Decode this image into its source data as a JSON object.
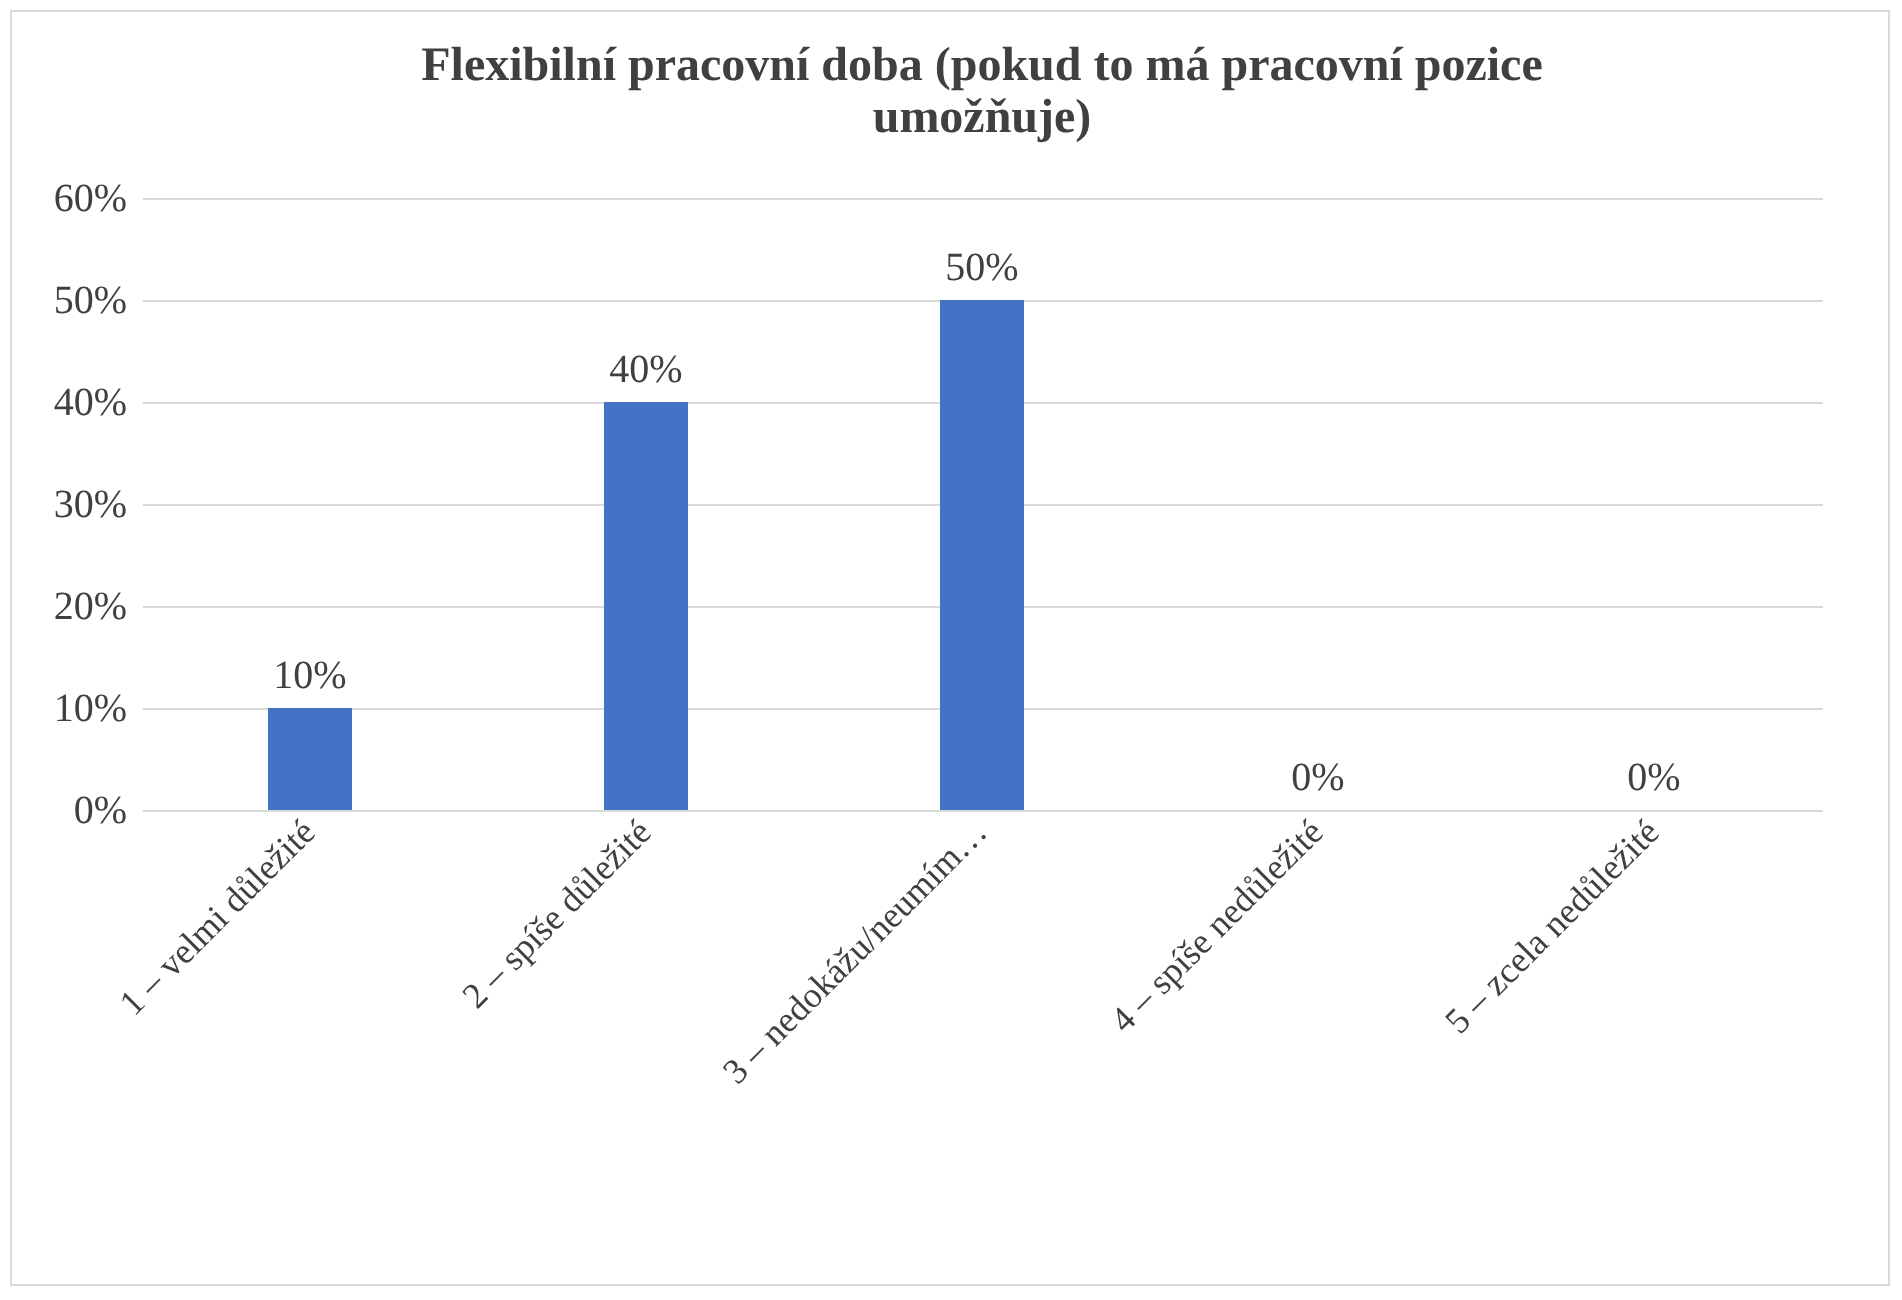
{
  "chart_data": {
    "type": "bar",
    "title": "Flexibilní pracovní doba (pokud to má pracovní pozice umožňuje)",
    "categories": [
      "1 – velmi důležité",
      "2 – spíše důležité",
      "3 – nedokážu/neumím…",
      "4 – spíše nedůležité",
      "5 – zcela nedůležité"
    ],
    "values": [
      10,
      40,
      50,
      0,
      0
    ],
    "value_labels": [
      "10%",
      "40%",
      "50%",
      "0%",
      "0%"
    ],
    "color": "#4472c4",
    "ylim": [
      0,
      60
    ],
    "yticks": [
      {
        "value": 0,
        "label": "0%"
      },
      {
        "value": 10,
        "label": "10%"
      },
      {
        "value": 20,
        "label": "20%"
      },
      {
        "value": 30,
        "label": "30%"
      },
      {
        "value": 40,
        "label": "40%"
      },
      {
        "value": 50,
        "label": "50%"
      },
      {
        "value": 60,
        "label": "60%"
      }
    ],
    "grid": "y"
  }
}
